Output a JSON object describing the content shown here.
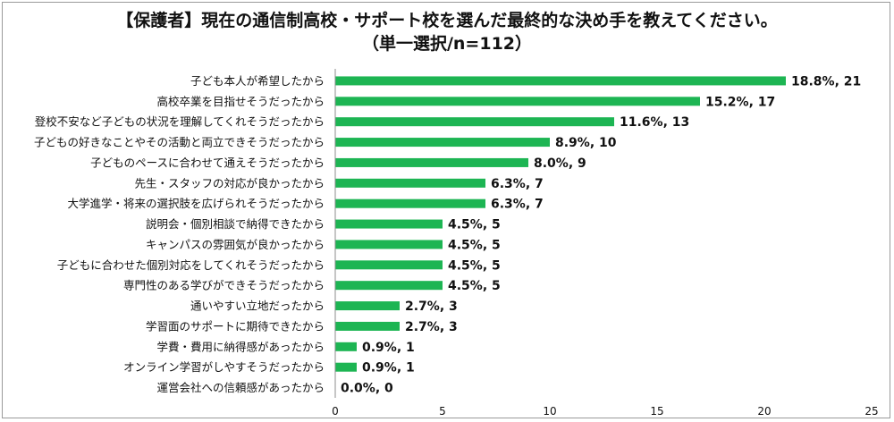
{
  "chart_data": {
    "type": "bar",
    "orientation": "horizontal",
    "title": "【保護者】現在の通信制高校・サポート校を選んだ最終的な決め手を教えてください。",
    "subtitle": "（単一選択/n=112）",
    "categories": [
      "子ども本人が希望したから",
      "高校卒業を目指せそうだったから",
      "登校不安など子どもの状況を理解してくれそうだったから",
      "子どもの好きなことやその活動と両立できそうだったから",
      "子どものペースに合わせて通えそうだったから",
      "先生・スタッフの対応が良かったから",
      "大学進学・将来の選択肢を広げられそうだったから",
      "説明会・個別相談で納得できたから",
      "キャンパスの雰囲気が良かったから",
      "子どもに合わせた個別対応をしてくれそうだったから",
      "専門性のある学びができそうだったから",
      "通いやすい立地だったから",
      "学習面のサポートに期待できたから",
      "学費・費用に納得感があったから",
      "オンライン学習がしやすそうだったから",
      "運営会社への信頼感があったから"
    ],
    "values": [
      21,
      17,
      13,
      10,
      9,
      7,
      7,
      5,
      5,
      5,
      5,
      3,
      3,
      1,
      1,
      0
    ],
    "data_labels": [
      "18.8%, 21",
      "15.2%, 17",
      "11.6%, 13",
      "8.9%, 10",
      "8.0%, 9",
      "6.3%, 7",
      "6.3%, 7",
      "4.5%, 5",
      "4.5%, 5",
      "4.5%, 5",
      "4.5%, 5",
      "2.7%, 3",
      "2.7%, 3",
      "0.9%, 1",
      "0.9%, 1",
      "0.0%, 0"
    ],
    "xlim": [
      0,
      25
    ],
    "xticks": [
      "0",
      "5",
      "10",
      "15",
      "20",
      "25"
    ],
    "grid": false,
    "legend": "none",
    "bar_color": "#1db553"
  }
}
